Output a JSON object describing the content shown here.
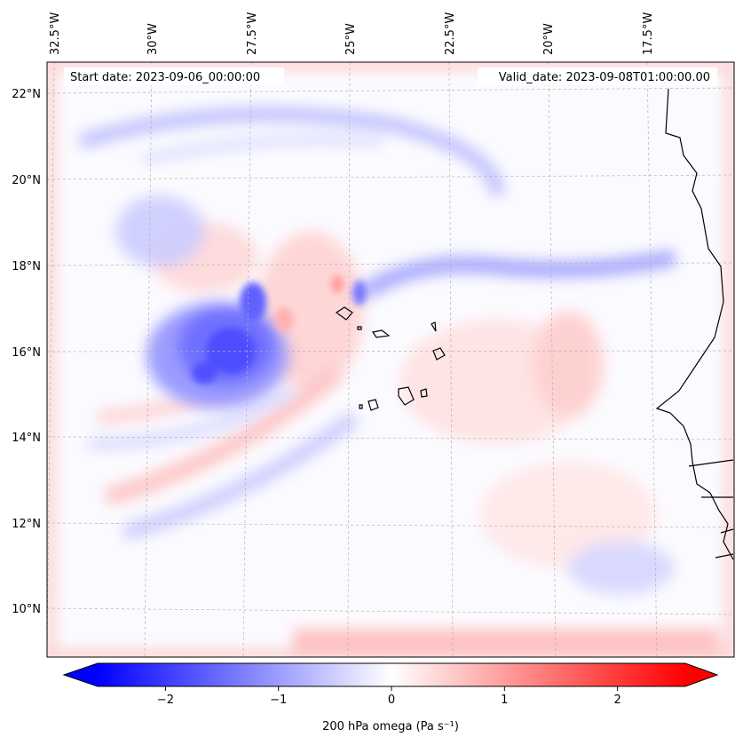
{
  "header": {
    "start_date": "Start date: 2023-09-06_00:00:00",
    "valid_date": "Valid_date: 2023-09-08T01:00:00.00"
  },
  "map": {
    "lon_labels": [
      "32.5°W",
      "30°W",
      "27.5°W",
      "25°W",
      "22.5°W",
      "20°W",
      "17.5°W"
    ],
    "lat_labels": [
      "22°N",
      "20°N",
      "18°N",
      "16°N",
      "14°N",
      "12°N",
      "10°N"
    ],
    "gridlines": true
  },
  "colorbar": {
    "label": "200 hPa omega (Pa s⁻¹)",
    "ticks": [
      "−2",
      "−1",
      "0",
      "1",
      "2"
    ],
    "tick_values": [
      -2,
      -1,
      0,
      1,
      2
    ],
    "range": [
      -2.6,
      2.6
    ],
    "negative_color": "#0000ff",
    "positive_color": "#ff0000",
    "center_color": "#ffffff"
  },
  "chart_data": {
    "type": "heatmap",
    "variable": "200 hPa omega",
    "units": "Pa s-1",
    "vmin": -2.6,
    "vmax": 2.6,
    "features": [
      {
        "name": "negative-core-near-16N-27W",
        "lon": -27.5,
        "lat": 16,
        "value": -1.8
      },
      {
        "name": "negative-band-18N",
        "lon": -20,
        "lat": 17.9,
        "value": -0.9
      },
      {
        "name": "negative-band-21.5N",
        "lon": -26,
        "lat": 21.5,
        "value": -0.6
      },
      {
        "name": "positive-spiral-14N",
        "lon": -27,
        "lat": 14.2,
        "value": 0.8
      },
      {
        "name": "positive-boundary",
        "lon": -25,
        "lat": 9.2,
        "value": 0.9
      }
    ]
  },
  "colors": {
    "coastline": "#000000",
    "grid": "#b0b0b0"
  }
}
